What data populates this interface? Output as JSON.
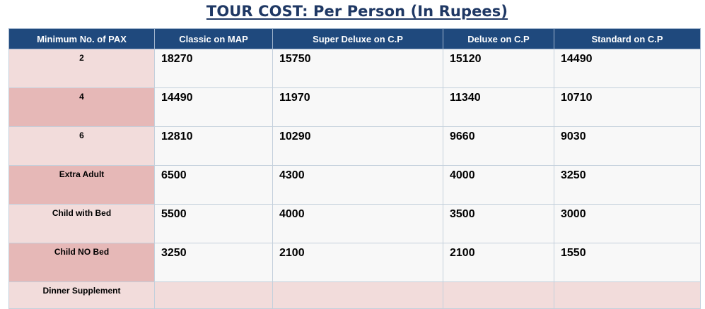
{
  "title": "TOUR COST: Per Person (In Rupees)",
  "table": {
    "headers": [
      "Minimum No. of PAX",
      "Classic on MAP",
      "Super Deluxe on C.P",
      "Deluxe on C.P",
      "Standard on C.P"
    ],
    "rows": [
      {
        "pax": "2",
        "values": [
          "18270",
          "15750",
          "15120",
          "14490"
        ]
      },
      {
        "pax": "4",
        "values": [
          "14490",
          "11970",
          "11340",
          "10710"
        ]
      },
      {
        "pax": "6",
        "values": [
          "12810",
          "10290",
          "9660",
          "9030"
        ]
      },
      {
        "pax": "Extra Adult",
        "values": [
          "6500",
          "4300",
          "4000",
          "3250"
        ]
      },
      {
        "pax": "Child with Bed",
        "values": [
          "5500",
          "4000",
          "3500",
          "3000"
        ]
      },
      {
        "pax": "Child NO Bed",
        "values": [
          "3250",
          "2100",
          "2100",
          "1550"
        ]
      },
      {
        "pax": "Dinner Supplement",
        "values": [
          "",
          "",
          "",
          ""
        ]
      }
    ]
  },
  "colors": {
    "title": "#1f3864",
    "header_bg": "#1f497d",
    "header_text": "#ffffff",
    "pax_light": "#f2dcdb",
    "pax_dark": "#e6b8b7",
    "cell_bg": "#f8f8f8",
    "border": "#c4d0dc"
  }
}
